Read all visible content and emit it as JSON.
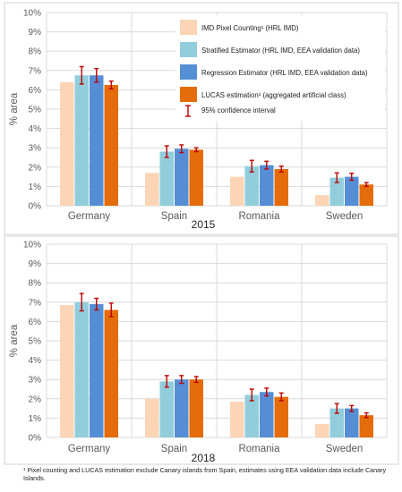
{
  "chart_data": [
    {
      "type": "bar",
      "title": "2015",
      "xlabel": "",
      "ylabel": "% area",
      "ylim": [
        0,
        10
      ],
      "y_tick_labels": [
        "0%",
        "1%",
        "2%",
        "3%",
        "4%",
        "5%",
        "6%",
        "7%",
        "8%",
        "9%",
        "10%"
      ],
      "categories": [
        "Germany",
        "Spain",
        "Romania",
        "Sweden"
      ],
      "grid": true,
      "legend_position": "top-right",
      "series": [
        {
          "name": "IMD Pixel Counting¹ (HRL IMD)",
          "color": "#fbd5b5",
          "values": [
            6.4,
            1.7,
            1.5,
            0.55
          ],
          "errors": null
        },
        {
          "name": "Stratified Estimator (HRL IMD, EEA validation data)",
          "color": "#92cddc",
          "values": [
            6.75,
            2.8,
            2.05,
            1.45
          ],
          "errors": [
            0.45,
            0.3,
            0.3,
            0.25
          ]
        },
        {
          "name": "Regression Estimator (HRL IMD, EEA validation data)",
          "color": "#558ed5",
          "values": [
            6.75,
            2.95,
            2.1,
            1.5
          ],
          "errors": [
            0.35,
            0.2,
            0.2,
            0.18
          ]
        },
        {
          "name": "LUCAS estimation¹ (aggregated artificial class)",
          "color": "#e46c0a",
          "values": [
            6.25,
            2.9,
            1.9,
            1.1
          ],
          "errors": [
            0.2,
            0.1,
            0.15,
            0.1
          ]
        }
      ],
      "error_legend_label": "95% confidence interval"
    },
    {
      "type": "bar",
      "title": "2018",
      "xlabel": "",
      "ylabel": "% area",
      "ylim": [
        0,
        10
      ],
      "y_tick_labels": [
        "0%",
        "1%",
        "2%",
        "3%",
        "4%",
        "5%",
        "6%",
        "7%",
        "8%",
        "9%",
        "10%"
      ],
      "categories": [
        "Germany",
        "Spain",
        "Romania",
        "Sweden"
      ],
      "grid": true,
      "series": [
        {
          "name": "IMD Pixel Counting¹ (HRL IMD)",
          "color": "#fbd5b5",
          "values": [
            6.85,
            2.0,
            1.85,
            0.7
          ],
          "errors": null
        },
        {
          "name": "Stratified Estimator (HRL IMD, EEA validation data)",
          "color": "#92cddc",
          "values": [
            7.0,
            2.9,
            2.2,
            1.5
          ],
          "errors": [
            0.45,
            0.3,
            0.3,
            0.25
          ]
        },
        {
          "name": "Regression Estimator (HRL IMD, EEA validation data)",
          "color": "#558ed5",
          "values": [
            6.9,
            3.0,
            2.35,
            1.5
          ],
          "errors": [
            0.3,
            0.2,
            0.2,
            0.15
          ]
        },
        {
          "name": "LUCAS estimation¹ (aggregated artificial class)",
          "color": "#e46c0a",
          "values": [
            6.6,
            3.0,
            2.1,
            1.15
          ],
          "errors": [
            0.35,
            0.15,
            0.2,
            0.12
          ]
        }
      ]
    }
  ],
  "footnote": "¹ Pixel counting and  LUCAS estimation exclude Canary islands from Spain, estimates using EEA validation data include Canary Islands.",
  "colors": {
    "grid": "#d9d9d9",
    "error_bar": "#c00000",
    "axis_text": "#595959",
    "border": "#d0d0d0"
  }
}
